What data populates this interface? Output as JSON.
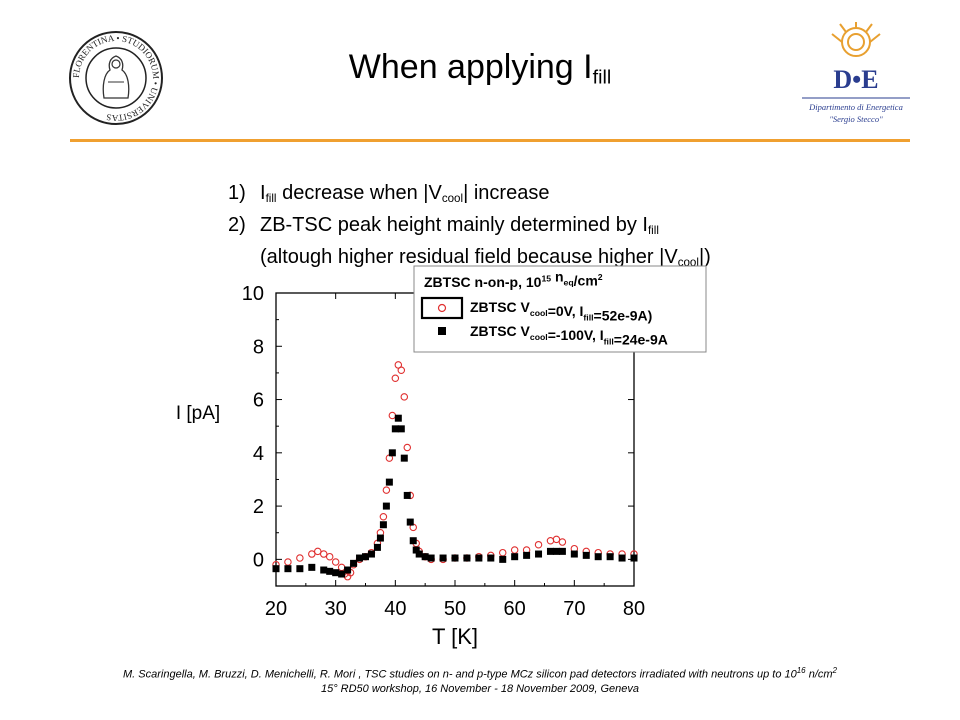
{
  "title": {
    "main": "When applying I",
    "sub": "fill"
  },
  "bullets": [
    {
      "num": "1)",
      "parts": [
        {
          "t": "I"
        },
        {
          "s": "fill"
        },
        {
          "t": " decrease when  |V"
        },
        {
          "s": "cool"
        },
        {
          "t": "| increase"
        }
      ]
    },
    {
      "num": "2)",
      "parts": [
        {
          "t": "ZB-TSC peak height mainly determined by I"
        },
        {
          "s": "fill"
        }
      ]
    },
    {
      "num": "",
      "parts": [
        {
          "t": "(altough higher residual field because higher |V"
        },
        {
          "s": "cool"
        },
        {
          "t": "|)"
        }
      ]
    }
  ],
  "logos": {
    "left_ring_text": "FLORENTINA • STUDIORUM • UNIVERSITAS",
    "right_mark": "D•E",
    "right_line1": "Dipartimento di Energetica",
    "right_line2": "\"Sergio Stecco\""
  },
  "footer": {
    "line1": "M. Scaringella, M. Bruzzi, D. Menichelli, R. Mori , TSC studies on n- and p-type MCz silicon pad detectors irradiated with neutrons up to 10",
    "line1_sup": "16",
    "line1_end": " n/cm",
    "line1_sup2": "2",
    "line2": "15° RD50 workshop, 16 November - 18 November 2009, Geneva"
  },
  "colors": {
    "accent_rule": "#f0a030",
    "series_open": "#e03030",
    "series_filled": "#000000"
  },
  "chart_data": {
    "type": "scatter",
    "xlabel": "T   [K]",
    "ylabel": "I [pA]",
    "xlim": [
      20,
      80
    ],
    "ylim": [
      -1,
      10
    ],
    "xticks": [
      20,
      30,
      40,
      50,
      60,
      70,
      80
    ],
    "yticks": [
      0,
      2,
      4,
      6,
      8,
      10
    ],
    "legend": {
      "title_parts": [
        {
          "t": "ZBTSC n-on-p, 10"
        },
        {
          "p": "15"
        },
        {
          "t": " n"
        },
        {
          "s": "eq"
        },
        {
          "t": "/cm"
        },
        {
          "p": "2"
        }
      ],
      "placement": "top-right"
    },
    "series": [
      {
        "name": "ZBTSC  V_cool=0V, I_fill=52e-9A)",
        "legend_parts": [
          {
            "t": "ZBTSC  V"
          },
          {
            "s": "cool"
          },
          {
            "t": "=0V, I"
          },
          {
            "s": "fill"
          },
          {
            "t": "=52e-9A)"
          }
        ],
        "marker": "open-circle",
        "color": "#e03030",
        "points": [
          [
            20,
            -0.2
          ],
          [
            22,
            -0.1
          ],
          [
            24,
            0.05
          ],
          [
            26,
            0.2
          ],
          [
            27,
            0.3
          ],
          [
            28,
            0.2
          ],
          [
            29,
            0.1
          ],
          [
            30,
            -0.1
          ],
          [
            31,
            -0.3
          ],
          [
            31.5,
            -0.55
          ],
          [
            32,
            -0.65
          ],
          [
            32.5,
            -0.5
          ],
          [
            33,
            -0.2
          ],
          [
            34,
            0
          ],
          [
            35,
            0.1
          ],
          [
            36,
            0.25
          ],
          [
            37,
            0.6
          ],
          [
            37.5,
            1
          ],
          [
            38,
            1.6
          ],
          [
            38.5,
            2.6
          ],
          [
            39,
            3.8
          ],
          [
            39.5,
            5.4
          ],
          [
            40,
            6.8
          ],
          [
            40.5,
            7.3
          ],
          [
            41,
            7.1
          ],
          [
            41.5,
            6.1
          ],
          [
            42,
            4.2
          ],
          [
            42.5,
            2.4
          ],
          [
            43,
            1.2
          ],
          [
            43.5,
            0.6
          ],
          [
            44,
            0.3
          ],
          [
            45,
            0.1
          ],
          [
            46,
            0
          ],
          [
            48,
            0
          ],
          [
            50,
            0.05
          ],
          [
            52,
            0.05
          ],
          [
            54,
            0.1
          ],
          [
            56,
            0.15
          ],
          [
            58,
            0.25
          ],
          [
            60,
            0.35
          ],
          [
            62,
            0.35
          ],
          [
            64,
            0.55
          ],
          [
            66,
            0.7
          ],
          [
            67,
            0.75
          ],
          [
            68,
            0.65
          ],
          [
            70,
            0.4
          ],
          [
            72,
            0.3
          ],
          [
            74,
            0.25
          ],
          [
            76,
            0.2
          ],
          [
            78,
            0.2
          ],
          [
            80,
            0.2
          ]
        ]
      },
      {
        "name": "ZBTSC  V_cool=-100V, I_fill=24e-9A",
        "legend_parts": [
          {
            "t": "ZBTSC  V"
          },
          {
            "s": "cool"
          },
          {
            "t": "=-100V, I"
          },
          {
            "s": "fill"
          },
          {
            "t": "=24e-9A"
          }
        ],
        "marker": "filled-square",
        "color": "#000000",
        "points": [
          [
            20,
            -0.35
          ],
          [
            22,
            -0.35
          ],
          [
            24,
            -0.35
          ],
          [
            26,
            -0.3
          ],
          [
            28,
            -0.4
          ],
          [
            29,
            -0.45
          ],
          [
            30,
            -0.5
          ],
          [
            31,
            -0.55
          ],
          [
            32,
            -0.4
          ],
          [
            33,
            -0.15
          ],
          [
            34,
            0.05
          ],
          [
            35,
            0.1
          ],
          [
            36,
            0.2
          ],
          [
            37,
            0.45
          ],
          [
            37.5,
            0.8
          ],
          [
            38,
            1.3
          ],
          [
            38.5,
            2
          ],
          [
            39,
            2.9
          ],
          [
            39.5,
            4
          ],
          [
            40,
            4.9
          ],
          [
            40.5,
            5.3
          ],
          [
            41,
            4.9
          ],
          [
            41.5,
            3.8
          ],
          [
            42,
            2.4
          ],
          [
            42.5,
            1.4
          ],
          [
            43,
            0.7
          ],
          [
            43.5,
            0.35
          ],
          [
            44,
            0.2
          ],
          [
            45,
            0.1
          ],
          [
            46,
            0.05
          ],
          [
            48,
            0.05
          ],
          [
            50,
            0.05
          ],
          [
            52,
            0.05
          ],
          [
            54,
            0.05
          ],
          [
            56,
            0.05
          ],
          [
            58,
            0
          ],
          [
            60,
            0.1
          ],
          [
            62,
            0.15
          ],
          [
            64,
            0.2
          ],
          [
            66,
            0.3
          ],
          [
            67,
            0.3
          ],
          [
            68,
            0.3
          ],
          [
            70,
            0.2
          ],
          [
            72,
            0.15
          ],
          [
            74,
            0.1
          ],
          [
            76,
            0.1
          ],
          [
            78,
            0.05
          ],
          [
            80,
            0.05
          ]
        ]
      }
    ]
  }
}
